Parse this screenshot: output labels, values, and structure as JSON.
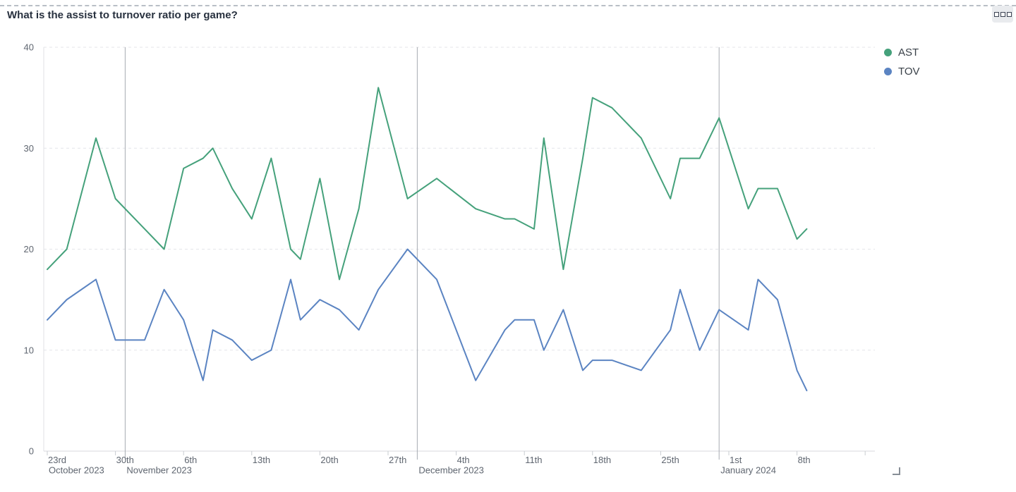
{
  "header": {
    "title": "What is the assist to turnover ratio per game?",
    "menu_icon": "three-squares-menu"
  },
  "chart_data": {
    "type": "line",
    "title": "What is the assist to turnover ratio per game?",
    "xlabel": "",
    "ylabel": "",
    "legend_position": "top-right",
    "grid": {
      "horizontal_dashed": true,
      "month_divider_days": [
        8,
        38,
        69
      ]
    },
    "y_axis": {
      "ticks": [
        0,
        10,
        20,
        30,
        40
      ],
      "range": [
        0,
        40
      ]
    },
    "x_axis": {
      "tick_labels": [
        {
          "label": "23rd",
          "day": 0
        },
        {
          "label": "30th",
          "day": 7
        },
        {
          "label": "6th",
          "day": 14
        },
        {
          "label": "13th",
          "day": 21
        },
        {
          "label": "20th",
          "day": 28
        },
        {
          "label": "27th",
          "day": 35
        },
        {
          "label": "4th",
          "day": 42
        },
        {
          "label": "11th",
          "day": 49
        },
        {
          "label": "18th",
          "day": 56
        },
        {
          "label": "25th",
          "day": 63
        },
        {
          "label": "1st",
          "day": 70
        },
        {
          "label": "8th",
          "day": 77
        }
      ],
      "unlabeled_tick_days": [
        84
      ],
      "month_labels": [
        {
          "label": "October 2023",
          "day": 0
        },
        {
          "label": "November 2023",
          "day": 8
        },
        {
          "label": "December 2023",
          "day": 38
        },
        {
          "label": "January 2024",
          "day": 69
        }
      ]
    },
    "x_days": [
      0,
      2,
      5,
      7,
      10,
      12,
      14,
      16,
      17,
      19,
      21,
      23,
      25,
      26,
      28,
      30,
      32,
      34,
      37,
      40,
      44,
      47,
      48,
      50,
      51,
      53,
      55,
      56,
      58,
      61,
      64,
      65,
      67,
      69,
      72,
      73,
      75,
      77,
      78
    ],
    "series": [
      {
        "name": "AST",
        "color": "#45a17b",
        "values": [
          18,
          20,
          31,
          25,
          22,
          20,
          28,
          29,
          30,
          26,
          23,
          29,
          20,
          19,
          27,
          17,
          24,
          36,
          25,
          27,
          24,
          23,
          23,
          22,
          31,
          18,
          29,
          35,
          34,
          31,
          25,
          29,
          29,
          33,
          24,
          26,
          26,
          21,
          22
        ]
      },
      {
        "name": "TOV",
        "color": "#5b84c2",
        "values": [
          13,
          15,
          17,
          11,
          11,
          16,
          13,
          7,
          12,
          11,
          9,
          10,
          17,
          13,
          15,
          14,
          12,
          16,
          20,
          17,
          7,
          12,
          13,
          13,
          10,
          14,
          8,
          9,
          9,
          8,
          12,
          16,
          10,
          14,
          12,
          17,
          15,
          8,
          6
        ]
      }
    ],
    "colors": {
      "grid_dashed": "#e4e6e9",
      "axis_line": "#d7dade",
      "left_axis_line": "#e0e2e5",
      "month_divider": "#a7abb2",
      "tick_mark": "#c9ccd1",
      "axis_text": "#5f6670"
    }
  }
}
